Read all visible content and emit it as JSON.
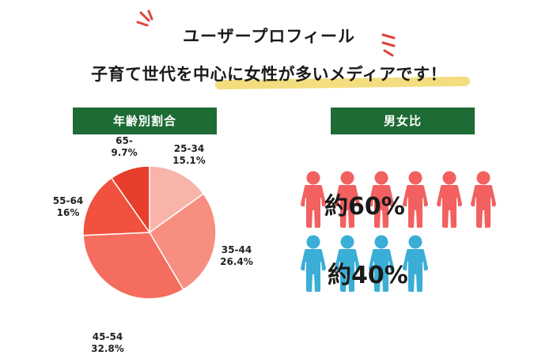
{
  "header": {
    "title": "ユーザープロフィール",
    "subtitle": "子育て世代を中心に女性が多いメディアです！"
  },
  "age_section": {
    "label": "年齢別割合"
  },
  "gender_section": {
    "label": "男女比",
    "female_ratio_text": "約60%",
    "male_ratio_text": "約40%",
    "female_icon_count": 6,
    "male_icon_count": 4,
    "female_color": "#f26060",
    "male_color": "#3aaed6"
  },
  "colors": {
    "accent_green": "#1e6b35",
    "highlight_yellow": "#f3dd7e",
    "spark_red": "#e0413a"
  },
  "chart_data": {
    "type": "pie",
    "slices": [
      {
        "label": "25-34",
        "value": 15.1,
        "value_text": "15.1%",
        "color": "#f9b4aa"
      },
      {
        "label": "35-44",
        "value": 26.4,
        "value_text": "26.4%",
        "color": "#f78f80"
      },
      {
        "label": "45-54",
        "value": 32.8,
        "value_text": "32.8%",
        "color": "#f46d5f"
      },
      {
        "label": "55-64",
        "value": 16,
        "value_text": "16%",
        "color": "#f0523f"
      },
      {
        "label": "65-",
        "value": 9.7,
        "value_text": "9.7%",
        "color": "#e83e2c"
      }
    ],
    "start": "top",
    "direction": "clockwise"
  }
}
